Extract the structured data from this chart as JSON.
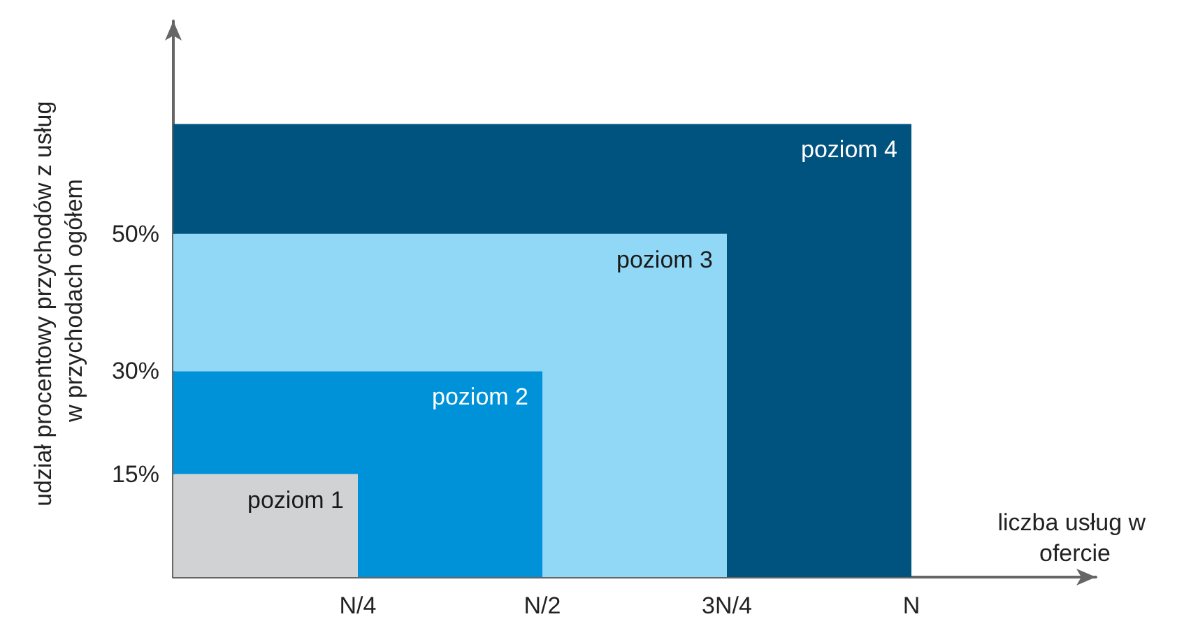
{
  "chart_data": {
    "type": "bar",
    "stacked": true,
    "xlabel": "liczba usług w ofercie",
    "ylabel": "udział procentowy przychodów z usług w przychodach ogółem",
    "categories": [
      "N/4",
      "N/2",
      "3N/4",
      "N",
      null
    ],
    "ylim": [
      0,
      81
    ],
    "yticks": [
      {
        "value": 15,
        "label": "15%"
      },
      {
        "value": 30,
        "label": "30%"
      },
      {
        "value": 50,
        "label": "50%"
      }
    ],
    "legend": false,
    "series": [
      {
        "name": "poziom 1",
        "color": "#d1d2d4",
        "values": [
          15,
          null,
          null,
          null,
          null
        ]
      },
      {
        "name": "poziom 2",
        "color": "#0092d8",
        "values": [
          15,
          30,
          null,
          null,
          null
        ]
      },
      {
        "name": "poziom 3",
        "color": "#91d8f6",
        "values": [
          20,
          20,
          50,
          null,
          null
        ]
      },
      {
        "name": "poziom 4",
        "color": "#00527f",
        "values": [
          16,
          16,
          16,
          66,
          null
        ]
      }
    ]
  }
}
